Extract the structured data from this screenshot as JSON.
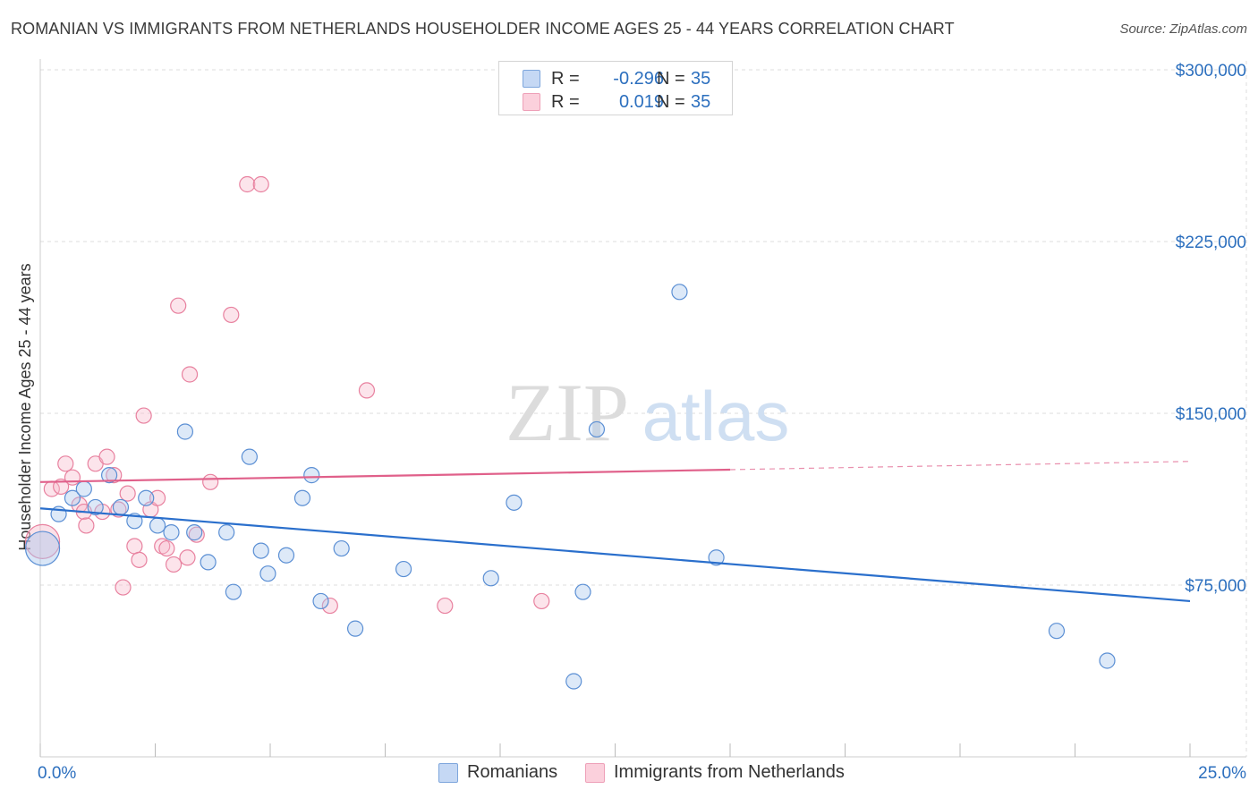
{
  "title": "ROMANIAN VS IMMIGRANTS FROM NETHERLANDS HOUSEHOLDER INCOME AGES 25 - 44 YEARS CORRELATION CHART",
  "source": "Source: ZipAtlas.com",
  "watermark": {
    "zip": "ZIP",
    "atlas": "atlas"
  },
  "legend": {
    "rows": [
      {
        "r_label": "R =",
        "r_value": "-0.296",
        "n_label": "N =",
        "n_value": "35"
      },
      {
        "r_label": "R =",
        "r_value": "0.019",
        "n_label": "N =",
        "n_value": "35"
      }
    ]
  },
  "bottom_legend": [
    "Romanians",
    "Immigrants from Netherlands"
  ],
  "colors": {
    "romanians_fill": "#aac7ee",
    "romanians_stroke": "#5b8fd4",
    "romanians_line": "#2a6fcc",
    "netherlands_fill": "#f7bccd",
    "netherlands_stroke": "#e8819f",
    "netherlands_line": "#e0608a",
    "tick_label": "#2c6fbe",
    "grid": "#dedede"
  },
  "chart_data": {
    "type": "scatter",
    "title": "ROMANIAN VS IMMIGRANTS FROM NETHERLANDS HOUSEHOLDER INCOME AGES 25 - 44 YEARS CORRELATION CHART",
    "xlabel": "",
    "ylabel": "Householder Income Ages 25 - 44 years",
    "xlim": [
      0,
      25
    ],
    "ylim": [
      0,
      310000
    ],
    "x_tick_labels": [
      "0.0%",
      "25.0%"
    ],
    "y_ticks": [
      75000,
      150000,
      225000,
      300000
    ],
    "y_tick_labels": [
      "$75,000",
      "$150,000",
      "$225,000",
      "$300,000"
    ],
    "grid": true,
    "series": [
      {
        "name": "Romanians",
        "points": [
          {
            "x": 0.05,
            "y": 91000,
            "big": true
          },
          {
            "x": 0.4,
            "y": 106000
          },
          {
            "x": 0.7,
            "y": 113000
          },
          {
            "x": 0.95,
            "y": 117000
          },
          {
            "x": 1.2,
            "y": 109000
          },
          {
            "x": 1.5,
            "y": 123000
          },
          {
            "x": 1.75,
            "y": 109000
          },
          {
            "x": 2.05,
            "y": 103000
          },
          {
            "x": 2.3,
            "y": 113000
          },
          {
            "x": 2.55,
            "y": 101000
          },
          {
            "x": 2.85,
            "y": 98000
          },
          {
            "x": 3.15,
            "y": 142000
          },
          {
            "x": 3.35,
            "y": 98000
          },
          {
            "x": 3.65,
            "y": 85000
          },
          {
            "x": 4.05,
            "y": 98000
          },
          {
            "x": 4.2,
            "y": 72000
          },
          {
            "x": 4.55,
            "y": 131000
          },
          {
            "x": 4.8,
            "y": 90000
          },
          {
            "x": 4.95,
            "y": 80000
          },
          {
            "x": 5.35,
            "y": 88000
          },
          {
            "x": 5.7,
            "y": 113000
          },
          {
            "x": 5.9,
            "y": 123000
          },
          {
            "x": 6.1,
            "y": 68000
          },
          {
            "x": 6.55,
            "y": 91000
          },
          {
            "x": 6.85,
            "y": 56000
          },
          {
            "x": 7.9,
            "y": 82000
          },
          {
            "x": 9.8,
            "y": 78000
          },
          {
            "x": 10.3,
            "y": 111000
          },
          {
            "x": 11.6,
            "y": 33000
          },
          {
            "x": 11.8,
            "y": 72000
          },
          {
            "x": 12.1,
            "y": 143000
          },
          {
            "x": 13.9,
            "y": 203000
          },
          {
            "x": 14.7,
            "y": 87000
          },
          {
            "x": 22.1,
            "y": 55000
          },
          {
            "x": 23.2,
            "y": 42000
          }
        ]
      },
      {
        "name": "Immigrants from Netherlands",
        "points": [
          {
            "x": 0.05,
            "y": 94000,
            "big": true
          },
          {
            "x": 0.25,
            "y": 117000
          },
          {
            "x": 0.45,
            "y": 118000
          },
          {
            "x": 0.55,
            "y": 128000
          },
          {
            "x": 0.7,
            "y": 122000
          },
          {
            "x": 0.85,
            "y": 110000
          },
          {
            "x": 0.95,
            "y": 107000
          },
          {
            "x": 1.0,
            "y": 101000
          },
          {
            "x": 1.2,
            "y": 128000
          },
          {
            "x": 1.35,
            "y": 107000
          },
          {
            "x": 1.45,
            "y": 131000
          },
          {
            "x": 1.6,
            "y": 123000
          },
          {
            "x": 1.7,
            "y": 108000
          },
          {
            "x": 1.8,
            "y": 74000
          },
          {
            "x": 1.9,
            "y": 115000
          },
          {
            "x": 2.05,
            "y": 92000
          },
          {
            "x": 2.15,
            "y": 86000
          },
          {
            "x": 2.25,
            "y": 149000
          },
          {
            "x": 2.4,
            "y": 108000
          },
          {
            "x": 2.55,
            "y": 113000
          },
          {
            "x": 2.65,
            "y": 92000
          },
          {
            "x": 2.75,
            "y": 91000
          },
          {
            "x": 2.9,
            "y": 84000
          },
          {
            "x": 3.0,
            "y": 197000
          },
          {
            "x": 3.2,
            "y": 87000
          },
          {
            "x": 3.25,
            "y": 167000
          },
          {
            "x": 3.4,
            "y": 97000
          },
          {
            "x": 3.7,
            "y": 120000
          },
          {
            "x": 4.15,
            "y": 193000
          },
          {
            "x": 4.5,
            "y": 250000
          },
          {
            "x": 4.8,
            "y": 250000
          },
          {
            "x": 6.3,
            "y": 66000
          },
          {
            "x": 7.1,
            "y": 160000
          },
          {
            "x": 8.8,
            "y": 66000
          },
          {
            "x": 10.9,
            "y": 68000
          }
        ]
      }
    ],
    "trendlines": [
      {
        "series": "Romanians",
        "x0": 0,
        "y0": 108500,
        "x1": 25,
        "y1": 68000,
        "dashed_from": null
      },
      {
        "series": "Immigrants from Netherlands",
        "x0": 0,
        "y0": 120000,
        "x1": 25,
        "y1": 129000,
        "dashed_from": 15
      }
    ]
  }
}
